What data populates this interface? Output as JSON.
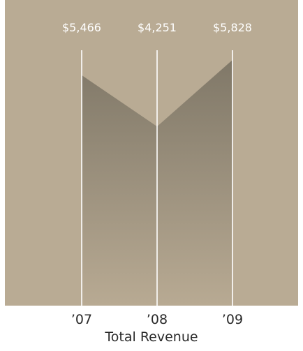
{
  "chart_data": {
    "type": "area",
    "categories": [
      "’07",
      "’08",
      "’09"
    ],
    "values": [
      5466,
      4251,
      5828
    ],
    "value_labels": [
      "$5,466",
      "$4,251",
      "$5,828"
    ],
    "ylim": [
      0,
      7250
    ],
    "grid": false,
    "legend": "none"
  },
  "caption": "Total Revenue",
  "colors": {
    "panel_background": "#b9ab94",
    "area_top": "#807868",
    "area_bottom": "#b8aa93",
    "vertical_lines": "#ffffff",
    "value_labels": "#ffffff",
    "tick_labels": "#2a2a2a"
  }
}
